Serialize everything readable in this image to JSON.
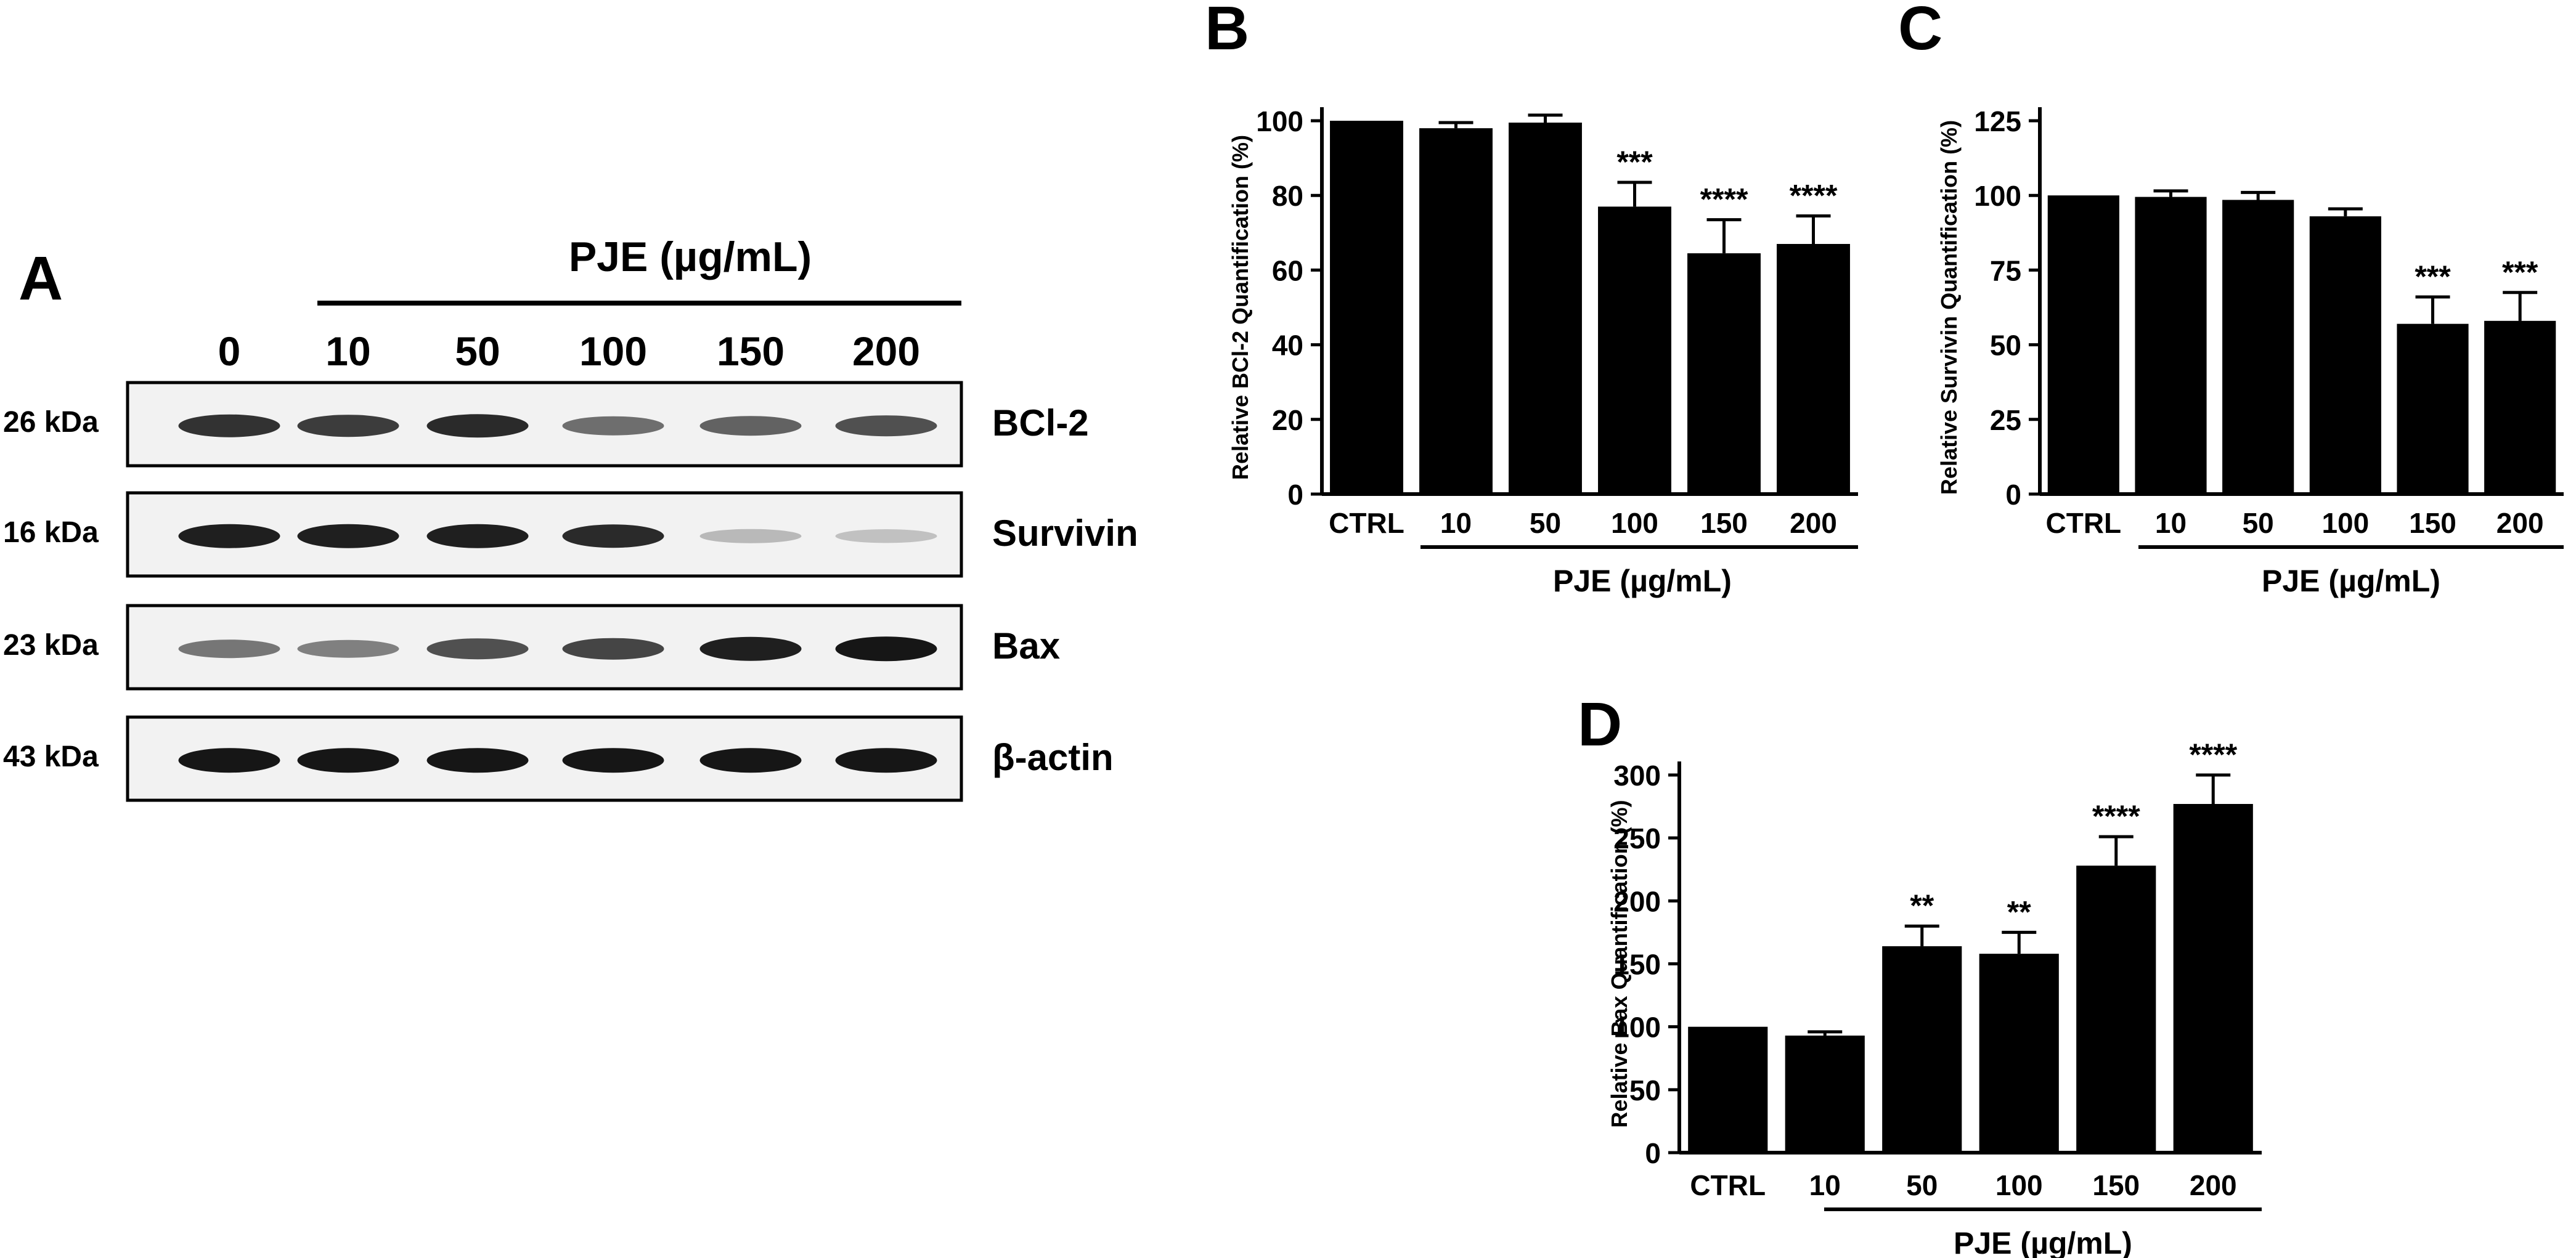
{
  "panel_a": {
    "letter": "A",
    "treatment_label": "PJE (µg/mL)",
    "lanes": [
      "0",
      "10",
      "50",
      "100",
      "150",
      "200"
    ],
    "blots": [
      {
        "weight": "26 kDa",
        "protein": "BCl-2",
        "intensity": [
          0.85,
          0.8,
          0.9,
          0.55,
          0.6,
          0.7
        ]
      },
      {
        "weight": "16 kDa",
        "protein": "Survivin",
        "intensity": [
          0.95,
          0.95,
          0.95,
          0.9,
          0.15,
          0.12
        ]
      },
      {
        "weight": "23 kDa",
        "protein": "Bax",
        "intensity": [
          0.5,
          0.45,
          0.7,
          0.75,
          0.95,
          1.0
        ]
      },
      {
        "weight": "43 kDa",
        "protein": "β-actin",
        "intensity": [
          1.0,
          1.0,
          1.0,
          1.0,
          1.0,
          1.0
        ]
      }
    ]
  },
  "chart_data": [
    {
      "panel": "B",
      "type": "bar",
      "categories": [
        "CTRL",
        "10",
        "50",
        "100",
        "150",
        "200"
      ],
      "values": [
        100,
        98,
        99.5,
        77,
        64.5,
        67
      ],
      "errors": [
        0,
        1.5,
        2,
        6.5,
        9,
        7.5
      ],
      "significance": [
        "",
        "",
        "",
        "***",
        "****",
        "****"
      ],
      "ylabel": "Relative BCl-2 Quantification (%)",
      "xlabel": "PJE (µg/mL)",
      "ylim": [
        0,
        100
      ],
      "yticks": [
        0,
        20,
        40,
        60,
        80,
        100
      ]
    },
    {
      "panel": "C",
      "type": "bar",
      "categories": [
        "CTRL",
        "10",
        "50",
        "100",
        "150",
        "200"
      ],
      "values": [
        100,
        99.5,
        98.5,
        93,
        57,
        58
      ],
      "errors": [
        0,
        2,
        2.5,
        2.5,
        9,
        9.5
      ],
      "significance": [
        "",
        "",
        "",
        "",
        "***",
        "***"
      ],
      "ylabel": "Relative Survivin Quantification (%)",
      "xlabel": "PJE (µg/mL)",
      "ylim": [
        0,
        125
      ],
      "yticks": [
        0,
        25,
        50,
        75,
        100,
        125
      ]
    },
    {
      "panel": "D",
      "type": "bar",
      "categories": [
        "CTRL",
        "10",
        "50",
        "100",
        "150",
        "200"
      ],
      "values": [
        100,
        93,
        164,
        158,
        228,
        277
      ],
      "errors": [
        0,
        3,
        16,
        17,
        23,
        23
      ],
      "significance": [
        "",
        "",
        "**",
        "**",
        "****",
        "****"
      ],
      "ylabel": "Relative Bax Quantification (%)",
      "xlabel": "PJE (µg/mL)",
      "ylim": [
        0,
        300
      ],
      "yticks": [
        0,
        50,
        100,
        150,
        200,
        250,
        300
      ]
    }
  ]
}
